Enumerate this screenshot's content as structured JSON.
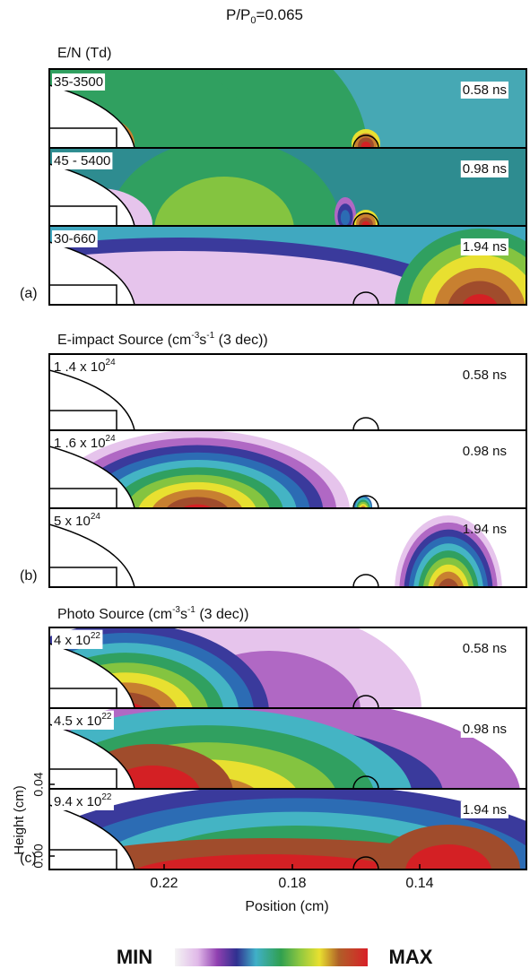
{
  "title": {
    "base": "P/P",
    "sub": "0",
    "rest": "=0.065"
  },
  "sections": [
    {
      "label": "(a)",
      "heading": [
        {
          "text": "E/N (Td)"
        }
      ],
      "plots": [
        {
          "range": "35-3500",
          "time": "0.58 ns"
        },
        {
          "range": "45 - 5400",
          "time": "0.98 ns"
        },
        {
          "range": "30-660",
          "time": "1.94 ns"
        }
      ]
    },
    {
      "label": "(b)",
      "heading": [
        {
          "text": "E-impact Source  (cm"
        },
        {
          "sup": "-3"
        },
        {
          "text": "s"
        },
        {
          "sup": "-1"
        },
        {
          "text": " (3 dec))"
        }
      ],
      "plots": [
        {
          "range": "1 .4 x 10",
          "range_exp": "24",
          "time": "0.58 ns"
        },
        {
          "range": "1 .6 x 10",
          "range_exp": "24",
          "time": "0.98 ns"
        },
        {
          "range": "5 x 10",
          "range_exp": "24",
          "time": "1.94 ns"
        }
      ]
    },
    {
      "label": "(c)",
      "heading": [
        {
          "text": "Photo Source  (cm"
        },
        {
          "sup": "-3"
        },
        {
          "text": "s"
        },
        {
          "sup": "-1"
        },
        {
          "text": " (3 dec))"
        }
      ],
      "plots": [
        {
          "range": "4 x 10",
          "range_exp": "22",
          "time": "0.58 ns"
        },
        {
          "range": "4.5 x 10",
          "range_exp": "22",
          "time": "0.98 ns"
        },
        {
          "range": "9.4 x 10",
          "range_exp": "22",
          "time": "1.94 ns"
        }
      ]
    }
  ],
  "x_axis": {
    "label": "Position (cm)",
    "ticks": [
      "0.22",
      "0.18",
      "0.14"
    ]
  },
  "y_axis": {
    "label": "Height (cm)",
    "ticks": [
      "0.00",
      "0.04"
    ]
  },
  "colorbar": {
    "min": "MIN",
    "max": "MAX"
  }
}
